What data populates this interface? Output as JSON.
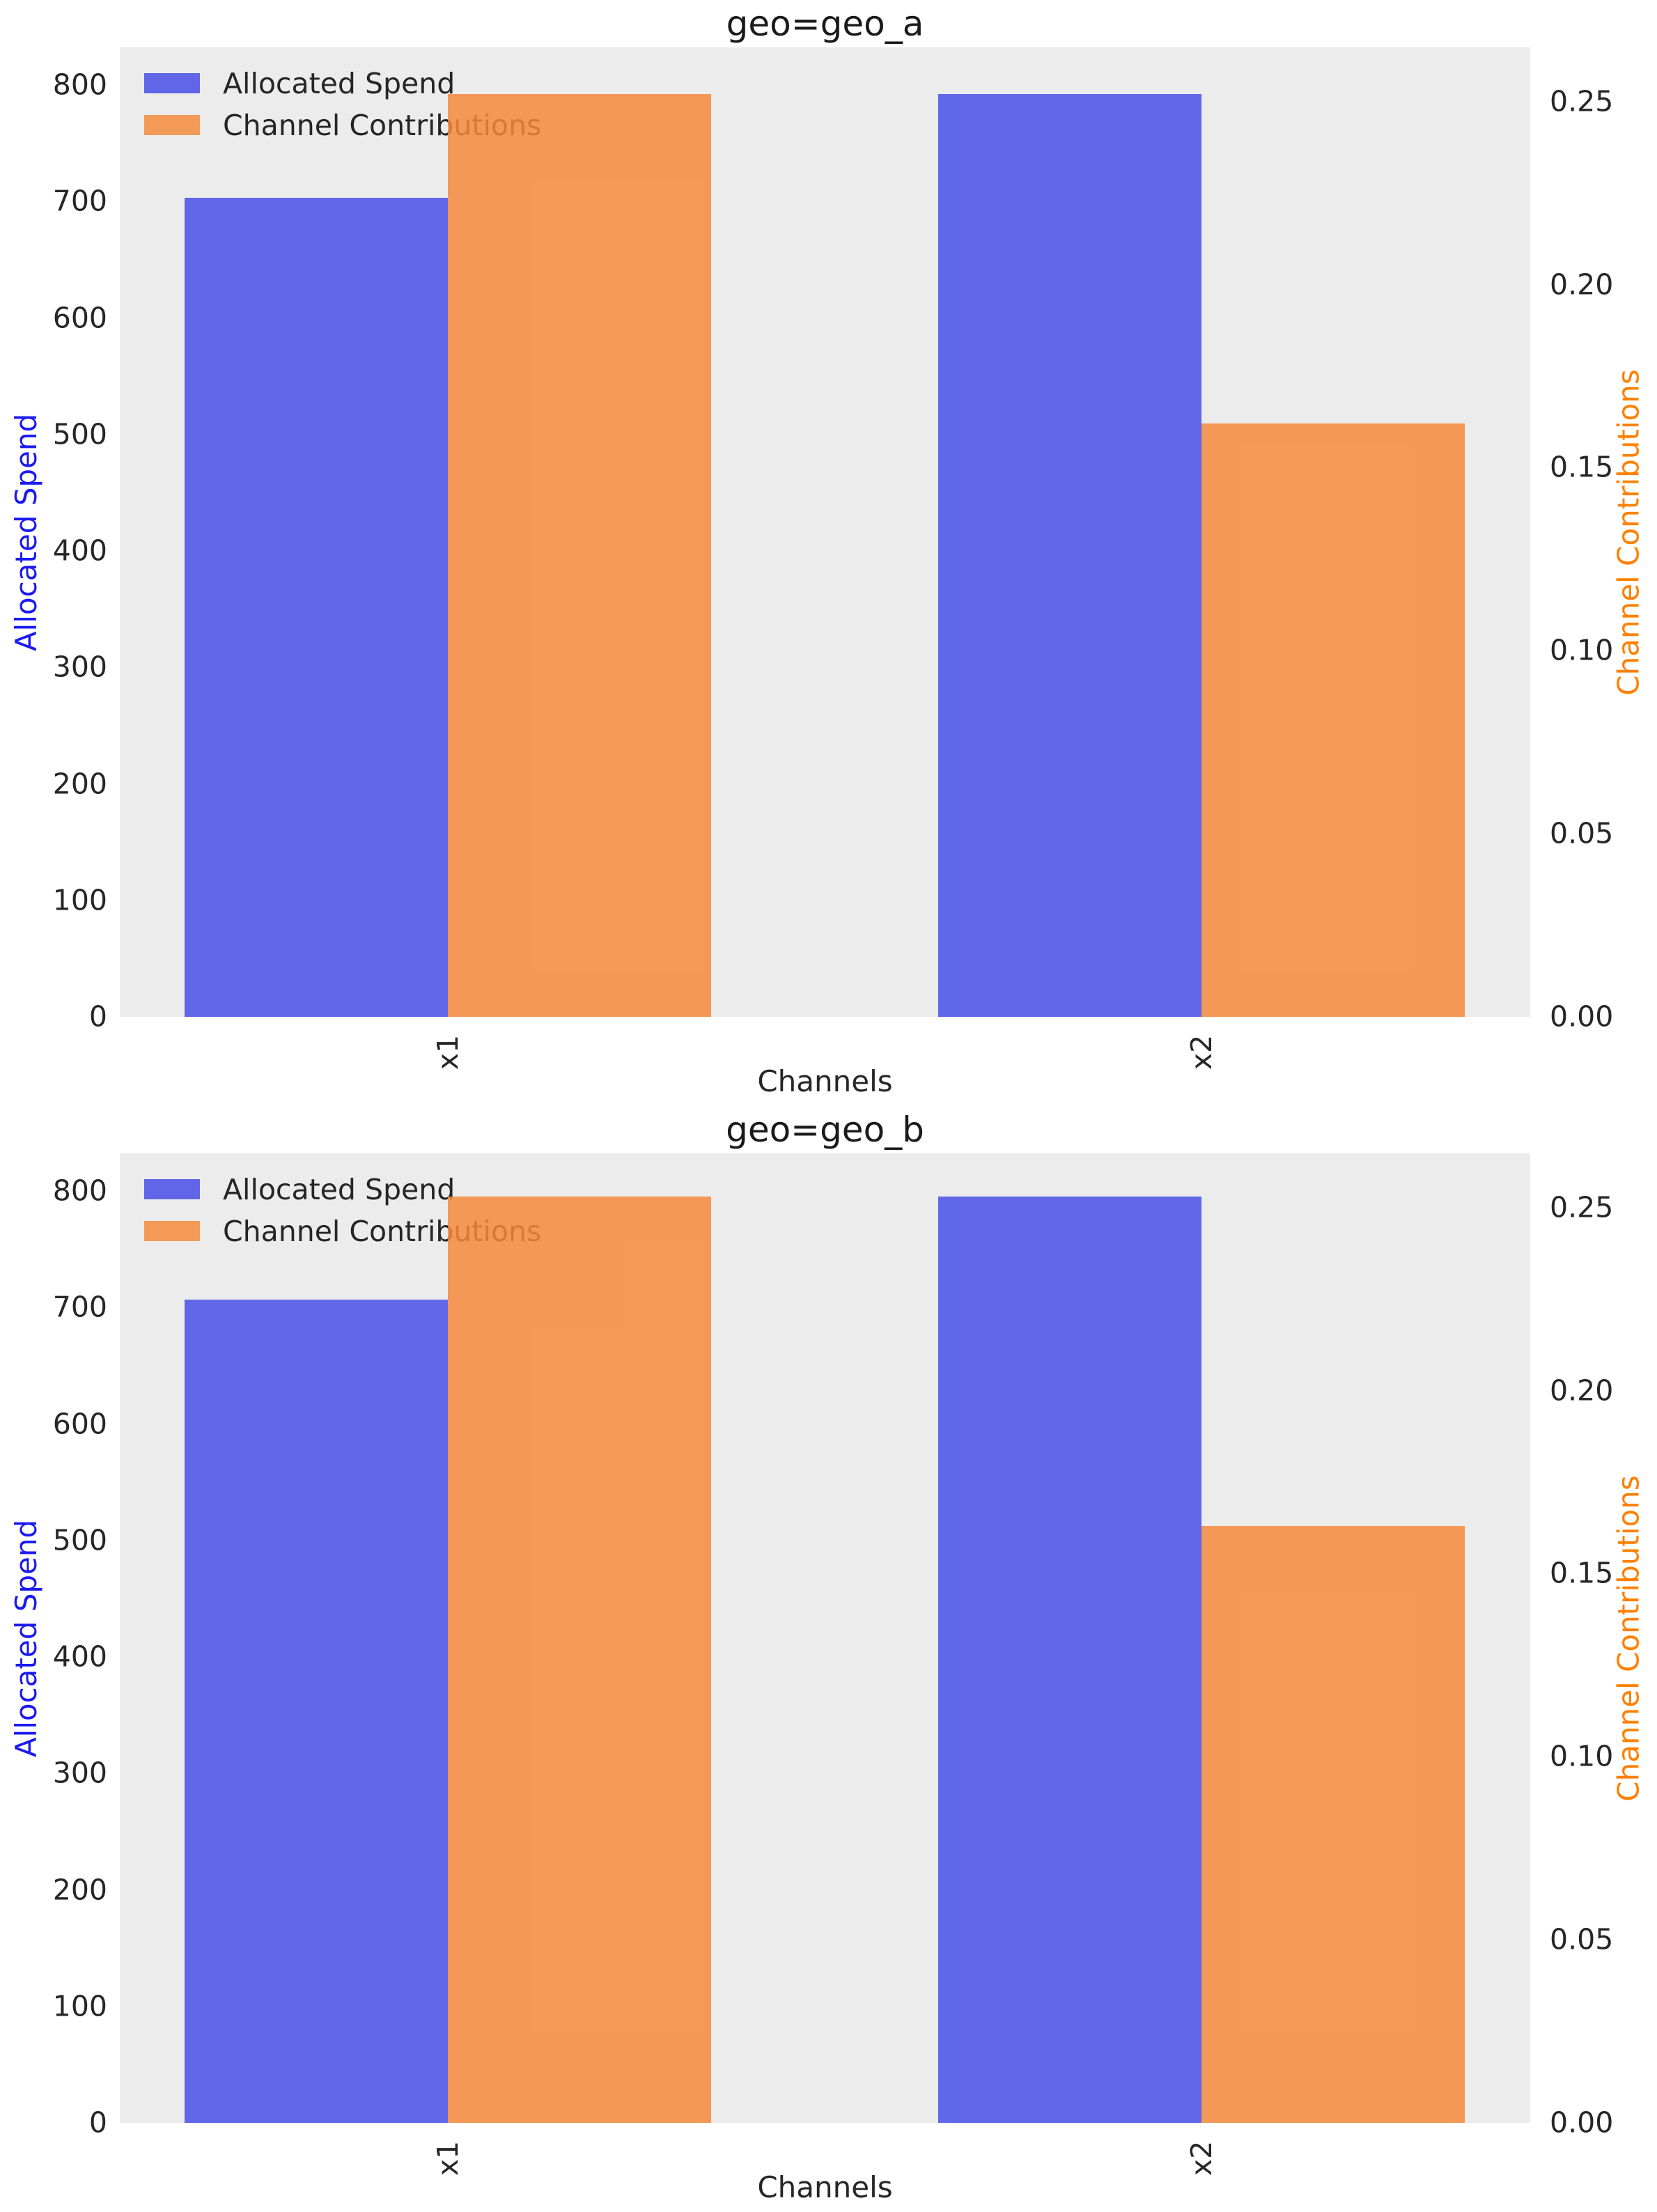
{
  "figure": {
    "background": "#ffffff",
    "plot_background": "#ececec"
  },
  "colors": {
    "spend_bar": "#6166E8",
    "contribution_bar": "#F49A57",
    "spend_bar_fill": "rgba(72,80,231,0.85)",
    "contribution_bar_fill": "rgba(245,138,60,0.85)",
    "left_axis_label": "#1A1AF0",
    "right_axis_label": "#FF8000",
    "tick_text": "#262626",
    "title_text": "#1a1a1a",
    "legend_text": "#262626"
  },
  "legend": {
    "items": [
      {
        "label": "Allocated Spend",
        "color": "#6166E8"
      },
      {
        "label": "Channel Contributions",
        "color": "#F49A57"
      }
    ],
    "position": "upper left"
  },
  "axes": {
    "x_label": "Channels",
    "left_axis_label": "Allocated Spend",
    "right_axis_label": "Channel Contributions",
    "left_ticks": [
      0,
      100,
      200,
      300,
      400,
      500,
      600,
      700,
      800
    ],
    "right_ticks": [
      "0.00",
      "0.05",
      "0.10",
      "0.15",
      "0.20",
      "0.25"
    ],
    "left_ylim": [
      0,
      832.3
    ],
    "right_ylim": [
      0,
      0.2648
    ],
    "grid": false
  },
  "chart_data": [
    {
      "type": "bar",
      "title": "geo=geo_a",
      "xlabel": "Channels",
      "categories": [
        "x1",
        "x2"
      ],
      "series": [
        {
          "name": "Allocated Spend",
          "axis": "left",
          "values": [
            703,
            792
          ]
        },
        {
          "name": "Channel Contributions",
          "axis": "right",
          "values": [
            0.252,
            0.162
          ]
        }
      ],
      "left_axis_range": [
        0,
        832
      ],
      "right_axis_range": [
        0,
        0.265
      ],
      "grid": false,
      "legend_position": "upper left"
    },
    {
      "type": "bar",
      "title": "geo=geo_b",
      "xlabel": "Channels",
      "categories": [
        "x1",
        "x2"
      ],
      "series": [
        {
          "name": "Allocated Spend",
          "axis": "left",
          "values": [
            707,
            795
          ]
        },
        {
          "name": "Channel Contributions",
          "axis": "right",
          "values": [
            0.253,
            0.163
          ]
        }
      ],
      "left_axis_range": [
        0,
        832
      ],
      "right_axis_range": [
        0,
        0.265
      ],
      "grid": false,
      "legend_position": "upper left"
    }
  ]
}
